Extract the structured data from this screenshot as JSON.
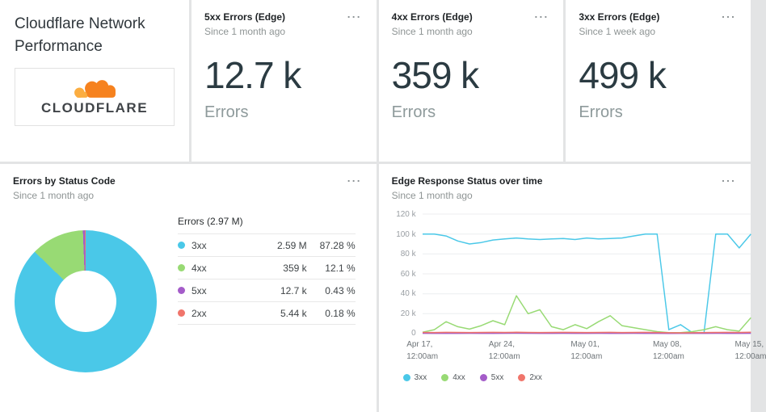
{
  "icons": {
    "menu": "⋯"
  },
  "brand": {
    "cloud_orange": "#F6821F",
    "cloud_light": "#FBAD41",
    "accent_cyan": "#4ac8e8",
    "accent_green": "#98da74",
    "accent_purple": "#a45cc9",
    "accent_salmon": "#f0756b"
  },
  "title_card": {
    "title": "Cloudflare Network Performance",
    "logo_text": "CLOUDFLARE"
  },
  "stat_cards": [
    {
      "title": "5xx Errors (Edge)",
      "subtitle": "Since 1 month ago",
      "value": "12.7 k",
      "unit": "Errors"
    },
    {
      "title": "4xx Errors (Edge)",
      "subtitle": "Since 1 month ago",
      "value": "359 k",
      "unit": "Errors"
    },
    {
      "title": "3xx Errors (Edge)",
      "subtitle": "Since 1 week ago",
      "value": "499 k",
      "unit": "Errors"
    }
  ],
  "pie_card": {
    "title": "Errors by Status Code",
    "subtitle": "Since 1 month ago"
  },
  "line_card": {
    "title": "Edge Response Status over time",
    "subtitle": "Since 1 month ago"
  },
  "chart_data": [
    {
      "type": "pie",
      "title": "Errors by Status Code",
      "total_label": "Errors (2.97 M)",
      "slices": [
        {
          "label": "3xx",
          "value": "2.59 M",
          "percent": 87.28,
          "percent_label": "87.28 %",
          "color": "#4ac8e8"
        },
        {
          "label": "4xx",
          "value": "359 k",
          "percent": 12.1,
          "percent_label": "12.1 %",
          "color": "#98da74"
        },
        {
          "label": "5xx",
          "value": "12.7 k",
          "percent": 0.43,
          "percent_label": "0.43 %",
          "color": "#a45cc9"
        },
        {
          "label": "2xx",
          "value": "5.44 k",
          "percent": 0.18,
          "percent_label": "0.18 %",
          "color": "#f0756b"
        }
      ]
    },
    {
      "type": "line",
      "title": "Edge Response Status over time",
      "ylim": [
        0,
        120000
      ],
      "ytick_labels": [
        "0",
        "20 k",
        "40 k",
        "60 k",
        "80 k",
        "100 k",
        "120 k"
      ],
      "xticks": [
        {
          "date": "Apr 17,",
          "time": "12:00am",
          "pos": 0
        },
        {
          "date": "Apr 24,",
          "time": "12:00am",
          "pos": 0.25
        },
        {
          "date": "May 01,",
          "time": "12:00am",
          "pos": 0.5
        },
        {
          "date": "May 08,",
          "time": "12:00am",
          "pos": 0.75
        },
        {
          "date": "May 15,",
          "time": "12:00am",
          "pos": 1
        }
      ],
      "series": [
        {
          "name": "3xx",
          "color": "#4ac8e8",
          "values": [
            100000,
            100000,
            98000,
            93000,
            90000,
            91500,
            94000,
            95000,
            96000,
            95000,
            94500,
            95000,
            95500,
            94500,
            96000,
            95000,
            95500,
            96000,
            98000,
            100000,
            100000,
            4000,
            9000,
            1000,
            1000,
            100000,
            100000,
            86000,
            100000
          ]
        },
        {
          "name": "4xx",
          "color": "#98da74",
          "values": [
            1500,
            4000,
            12000,
            7000,
            4500,
            8000,
            13000,
            9000,
            38000,
            20000,
            24000,
            7000,
            4000,
            9000,
            5000,
            12000,
            18000,
            8000,
            6000,
            4000,
            2000,
            1000,
            1000,
            2000,
            4000,
            7000,
            4000,
            2500,
            16000
          ]
        },
        {
          "name": "5xx",
          "color": "#a45cc9",
          "values": [
            400,
            300,
            350,
            300,
            400,
            300,
            350,
            400,
            500,
            400,
            350,
            300,
            400,
            350,
            300,
            400,
            350,
            300,
            400,
            350,
            300,
            250,
            300,
            350,
            300,
            400,
            350,
            300,
            400
          ]
        },
        {
          "name": "2xx",
          "color": "#f0756b",
          "values": [
            1200,
            1100,
            1300,
            1200,
            1100,
            1200,
            1300,
            1200,
            1400,
            1200,
            1100,
            1200,
            1300,
            1200,
            1100,
            1200,
            1300,
            1100,
            1200,
            1300,
            1100,
            900,
            800,
            900,
            1100,
            1200,
            1300,
            1200,
            1400
          ]
        }
      ],
      "legend_position": "bottom-left",
      "grid": true
    }
  ]
}
